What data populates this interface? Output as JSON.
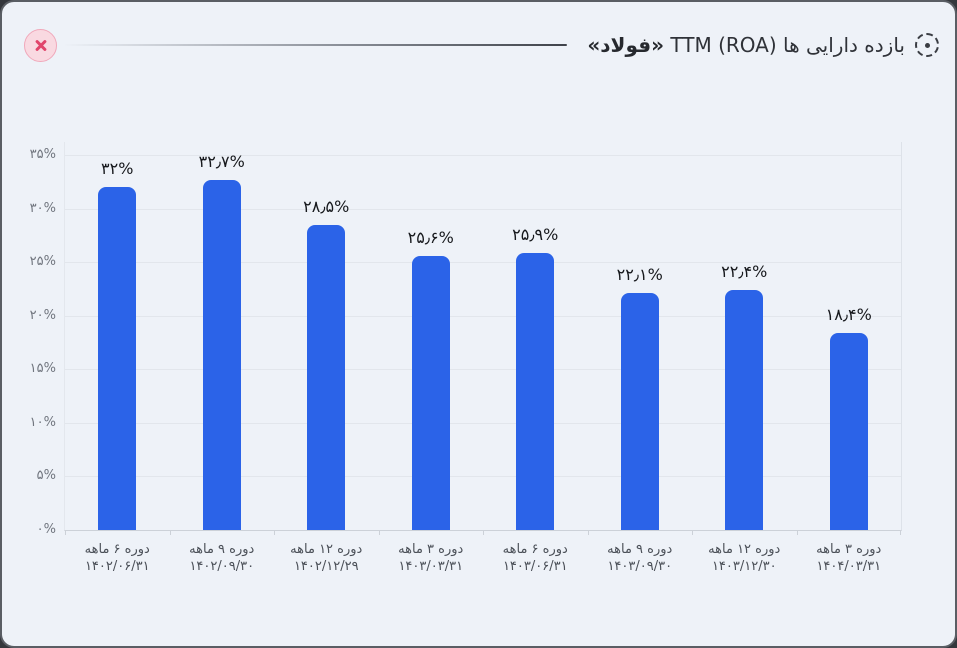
{
  "header": {
    "title": "بازده دارایی ها TTM (ROA)",
    "title_symbol": "«فولاد»",
    "icons": {
      "close": "x-cross",
      "title_marker": "dashed-circle-target"
    }
  },
  "colors": {
    "bar": "#2b63e8",
    "card_background": "#eef2f8",
    "close_button_bg": "#f9d9e1",
    "close_button_border": "#f0a8ba",
    "close_x": "#e1456b",
    "grid_line": "#e2e6ec",
    "axis_line": "#ccd1d8"
  },
  "chart_data": {
    "type": "bar",
    "title": "بازده دارایی ها TTM (ROA) «فولاد»",
    "legend": "none",
    "grid": true,
    "bar_color": "#2b63e8",
    "ylim": [
      0,
      36.2
    ],
    "y_axis": {
      "unit": "%",
      "ticks": [
        0,
        5,
        10,
        15,
        20,
        25,
        30,
        35
      ],
      "tick_labels": [
        "۰%",
        "۵%",
        "۱۰%",
        "۱۵%",
        "۲۰%",
        "۲۵%",
        "۳۰%",
        "۳۵%"
      ]
    },
    "categories": [
      {
        "period": "دوره ۶ ماهه",
        "date": "۱۴۰۲/۰۶/۳۱"
      },
      {
        "period": "دوره ۹ ماهه",
        "date": "۱۴۰۲/۰۹/۳۰"
      },
      {
        "period": "دوره ۱۲ ماهه",
        "date": "۱۴۰۲/۱۲/۲۹"
      },
      {
        "period": "دوره ۳ ماهه",
        "date": "۱۴۰۳/۰۳/۳۱"
      },
      {
        "period": "دوره ۶ ماهه",
        "date": "۱۴۰۳/۰۶/۳۱"
      },
      {
        "period": "دوره ۹ ماهه",
        "date": "۱۴۰۳/۰۹/۳۰"
      },
      {
        "period": "دوره ۱۲ ماهه",
        "date": "۱۴۰۳/۱۲/۳۰"
      },
      {
        "period": "دوره ۳ ماهه",
        "date": "۱۴۰۴/۰۳/۳۱"
      }
    ],
    "values": [
      32,
      32.7,
      28.5,
      25.6,
      25.9,
      22.1,
      22.4,
      18.4
    ],
    "value_labels": [
      "۳۲%",
      "۳۲٫۷%",
      "۲۸٫۵%",
      "۲۵٫۶%",
      "۲۵٫۹%",
      "۲۲٫۱%",
      "۲۲٫۴%",
      "۱۸٫۴%"
    ]
  }
}
